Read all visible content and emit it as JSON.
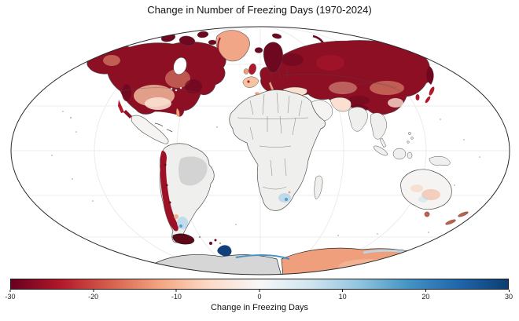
{
  "figure": {
    "title": "Change in Number of Freezing Days (1970-2024)",
    "background": "#ffffff"
  },
  "colorbar": {
    "label": "Change in Freezing Days",
    "min": -30,
    "max": 30,
    "ticks": [
      {
        "value": -30,
        "label": "-30"
      },
      {
        "value": -20,
        "label": "-20"
      },
      {
        "value": -10,
        "label": "-10"
      },
      {
        "value": 0,
        "label": "0"
      },
      {
        "value": 10,
        "label": "10"
      },
      {
        "value": 20,
        "label": "20"
      },
      {
        "value": 30,
        "label": "30"
      }
    ],
    "gradient_stops": [
      "#67001f",
      "#b2182b",
      "#d6604d",
      "#f4a582",
      "#fddbc7",
      "#f7f7f7",
      "#d1e5f0",
      "#92c5de",
      "#4393c3",
      "#2166ac",
      "#0c3d73"
    ],
    "border_color": "#1a1a1a"
  },
  "palette": {
    "dark_red": "#6d0820",
    "strong_red": "#8c0f24",
    "med_red": "#b2182b",
    "andes_red": "#9c1126",
    "red_brown": "#c0604a",
    "salmon": "#ef9f7c",
    "light_salmon": "#f6c3a3",
    "pale_pink": "#fbe0d1",
    "greenland_salmon": "#f0a687",
    "near_white_land": "#f6f4f2",
    "no_data_light": "#efefed",
    "no_data_dark": "#d3d3d3",
    "antarctic_gray": "#d6d6d6",
    "light_blue": "#b9d8ea",
    "med_blue": "#4292c3",
    "dark_blue": "#123f77",
    "land_border": "#4f4f4f",
    "graticule": "#e7e7e7",
    "map_outline": "#2a2a2a",
    "speckle": "#9a9a9a"
  },
  "chart_data": {
    "type": "heatmap",
    "subtype": "world_choropleth_map",
    "projection": "mollweide",
    "title": "Change in Number of Freezing Days (1970-2024)",
    "colorbar_label": "Change in Freezing Days",
    "colorbar_range": [
      -30,
      30
    ],
    "colorbar_ticks": [
      -30,
      -20,
      -10,
      0,
      10,
      20,
      30
    ],
    "colormap": "RdBu diverging (dark red = -30 fewer freezing days, white = 0, dark blue = +30 more)",
    "grid": "30-degree graticule, very light gray; ocean white",
    "regions": [
      {
        "region": "Alaska / northwest Canada",
        "change_days": -25
      },
      {
        "region": "Central Canada and northern USA plains",
        "change_days": -14
      },
      {
        "region": "Eastern Canada / Quebec / Labrador",
        "change_days": -23
      },
      {
        "region": "US west coast mountains",
        "change_days": -20
      },
      {
        "region": "Greenland",
        "change_days": -10
      },
      {
        "region": "Iceland and Svalbard",
        "change_days": -22
      },
      {
        "region": "United Kingdom and Ireland",
        "change_days": -15
      },
      {
        "region": "Scandinavia",
        "change_days": -27
      },
      {
        "region": "Central and Eastern Europe",
        "change_days": -28
      },
      {
        "region": "Western Russia",
        "change_days": -28
      },
      {
        "region": "Siberia",
        "change_days": -25
      },
      {
        "region": "Central Asia steppe",
        "change_days": -17
      },
      {
        "region": "Tibetan Plateau / Himalaya",
        "change_days": -23
      },
      {
        "region": "Northeastern China / Korea / Japan",
        "change_days": -18
      },
      {
        "region": "Iberian Peninsula",
        "change_days": -8
      },
      {
        "region": "Turkey / Iran highlands",
        "change_days": -6
      },
      {
        "region": "Andes (Peru to central Chile)",
        "change_days": -20
      },
      {
        "region": "Patagonia east of Andes",
        "change_days": 6
      },
      {
        "region": "Tierra del Fuego",
        "change_days": -22
      },
      {
        "region": "Lesotho / South African highlands",
        "change_days": 8
      },
      {
        "region": "Southeastern Australia",
        "change_days": -4
      },
      {
        "region": "Tasmania",
        "change_days": -10
      },
      {
        "region": "New Zealand Southern Alps",
        "change_days": -12
      },
      {
        "region": "East Antarctica coast",
        "change_days": -8
      },
      {
        "region": "Antarctic coastal fringe (blue band)",
        "change_days": 6
      },
      {
        "region": "Antarctic Peninsula area",
        "change_days": 15
      }
    ],
    "no_data_regions": [
      "Mexico and Central America",
      "Tropical Africa",
      "Amazon basin (darker gray)",
      "Arabia",
      "India lowlands",
      "Southeast Asia and Indonesia",
      "Interior Antarctica (gray)"
    ]
  }
}
